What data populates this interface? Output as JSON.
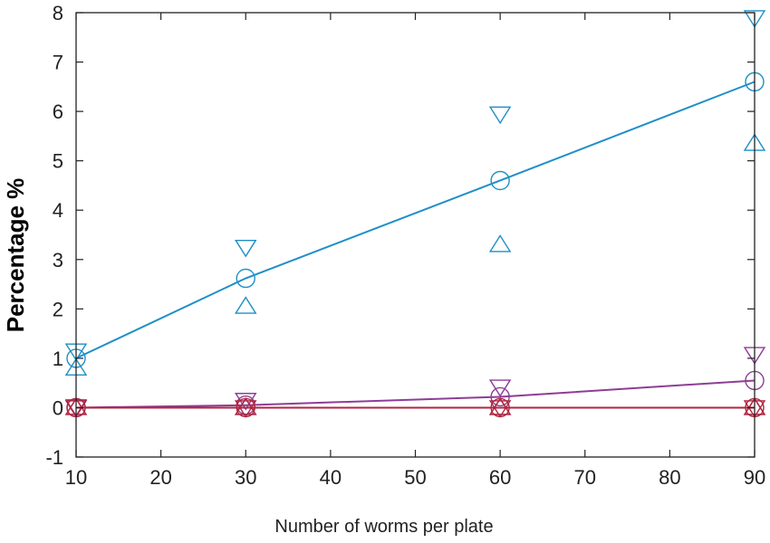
{
  "chart_data": {
    "type": "scatter",
    "xlabel": "Number of worms per plate",
    "ylabel": "Percentage %",
    "x": [
      10,
      30,
      60,
      90
    ],
    "xlim": [
      10,
      90
    ],
    "ylim": [
      -1,
      8
    ],
    "xticks": [
      10,
      20,
      30,
      40,
      50,
      60,
      70,
      80,
      90
    ],
    "yticks": [
      -1,
      0,
      1,
      2,
      3,
      4,
      5,
      6,
      7,
      8
    ],
    "grid": false,
    "series": [
      {
        "color": "#1f8fc6",
        "fit_line": true,
        "markers": {
          "circle": [
            1.0,
            2.62,
            4.6,
            6.6
          ],
          "tri_up": [
            0.8,
            2.05,
            3.3,
            5.35
          ],
          "tri_down": [
            1.15,
            3.25,
            5.95,
            7.9
          ]
        }
      },
      {
        "color": "#8e3d96",
        "fit_line": true,
        "markers": {
          "circle": [
            0.0,
            0.05,
            0.22,
            0.55
          ],
          "tri_up": [
            0.0,
            0.0,
            0.0,
            0.0
          ],
          "tri_down": [
            0.02,
            0.15,
            0.42,
            1.08
          ]
        }
      },
      {
        "color": "#b0263f",
        "fit_line": true,
        "markers": {
          "circle": [
            0.0,
            0.0,
            0.0,
            0.0
          ],
          "tri_up": [
            0.0,
            0.0,
            0.0,
            0.0
          ],
          "tri_down": [
            0.0,
            0.0,
            0.0,
            0.0
          ]
        }
      }
    ]
  }
}
